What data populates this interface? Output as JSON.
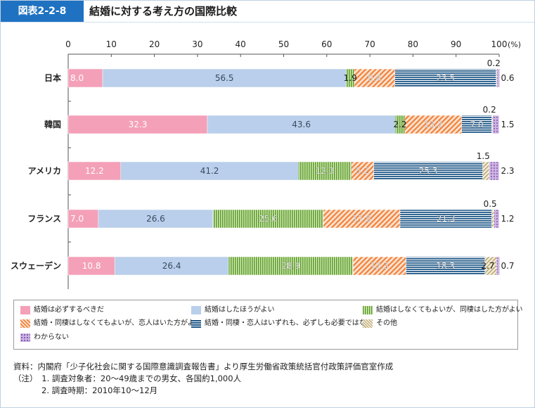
{
  "header": {
    "badge": "図表2-2-8",
    "title": "結婚に対する考え方の国際比較"
  },
  "chart_data": {
    "type": "bar",
    "orientation": "horizontal",
    "stacked": true,
    "x_ticks": [
      "0",
      "10",
      "20",
      "30",
      "40",
      "50",
      "60",
      "70",
      "80",
      "90",
      "100"
    ],
    "x_unit": "(%)",
    "xlim": [
      0,
      100
    ],
    "categories": [
      "日本",
      "韓国",
      "アメリカ",
      "フランス",
      "スウェーデン"
    ],
    "series": [
      {
        "name": "結婚は必ずするべきだ",
        "color": "#f4a0b8",
        "pattern": "solid-pink",
        "values": [
          8.0,
          32.3,
          12.2,
          7.0,
          10.8
        ]
      },
      {
        "name": "結婚はしたほうがよい",
        "color": "#b9cfeb",
        "pattern": "solid-blue",
        "values": [
          56.5,
          43.6,
          41.2,
          26.6,
          26.4
        ]
      },
      {
        "name": "結婚はしなくてもよいが、同棲はした方がよい",
        "color": "#7ab040",
        "pattern": "vertical-green",
        "values": [
          1.9,
          2.2,
          12.3,
          25.6,
          28.9
        ]
      },
      {
        "name": "結婚・同棲はしなくてもよいが、恋人はいた方がよい",
        "color": "#f28a4a",
        "pattern": "diagonal-orange",
        "values": [
          9.4,
          13.2,
          5.2,
          17.8,
          12.3
        ]
      },
      {
        "name": "結婚・同棲・恋人はいずれも、必ずしも必要ではない",
        "color": "#1e5a8a",
        "pattern": "horizontal-navy",
        "values": [
          23.5,
          7.0,
          25.3,
          21.3,
          18.3
        ]
      },
      {
        "name": "その他",
        "color": "#c8b88a",
        "pattern": "diagonal-tan",
        "values": [
          0.2,
          0.2,
          1.5,
          0.5,
          2.7
        ]
      },
      {
        "name": "わからない",
        "color": "#b48fd0",
        "pattern": "dots-purple",
        "values": [
          0.6,
          1.5,
          2.3,
          1.2,
          0.7
        ]
      }
    ],
    "labels": [
      [
        "8.0",
        "56.5",
        "1.9",
        "9.4",
        "23.5",
        "0.2",
        "0.6"
      ],
      [
        "32.3",
        "43.6",
        "2.2",
        "13.2",
        "7.0",
        "0.2",
        "1.5"
      ],
      [
        "12.2",
        "41.2",
        "12.3",
        "5.2",
        "25.3",
        "1.5",
        "2.3"
      ],
      [
        "7.0",
        "26.6",
        "25.6",
        "17.8",
        "21.3",
        "0.5",
        "1.2"
      ],
      [
        "10.8",
        "26.4",
        "28.9",
        "12.3",
        "18.3",
        "2.7",
        "0.7"
      ]
    ]
  },
  "notes": [
    "資料：内閣府「少子化社会に関する国際意識調査報告書」より厚生労働省政策統括官付政策評価官室作成",
    "（注）　1.  調査対象者：20〜49歳までの男女、各国約1,000人",
    "2.  調査時期：2010年10〜12月"
  ]
}
